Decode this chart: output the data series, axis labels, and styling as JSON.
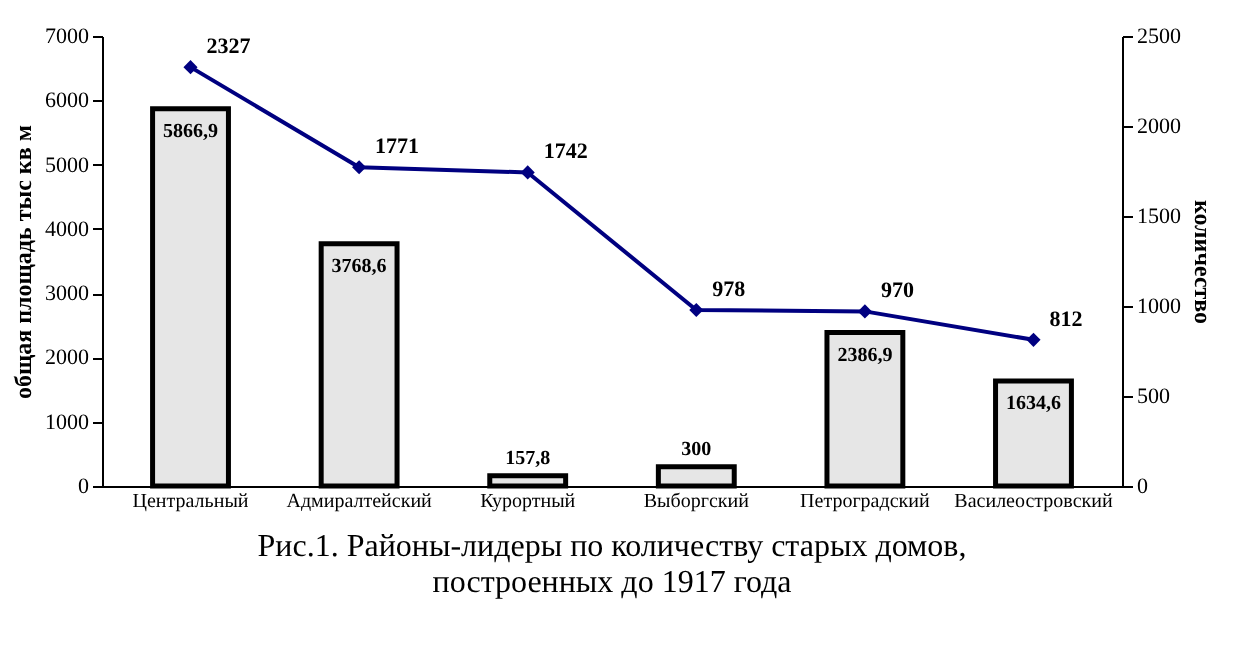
{
  "chart_data": {
    "type": "bar",
    "title": "Рис.1. Районы-лидеры по количеству старых домов,\nпостроенных до 1917 года",
    "ylabel": "общая площадь тыс кв м",
    "y2label": "количество",
    "categories": [
      "Центральный",
      "Адмиралтейский",
      "Курортный",
      "Выборгский",
      "Петроградский",
      "Василеостровский"
    ],
    "series": [
      {
        "type": "bar",
        "color": "#e6e6e6",
        "values": [
          5866.9,
          3768.6,
          157.8,
          300,
          2386.9,
          1634.6
        ],
        "value_labels": [
          "5866,9",
          "3768,6",
          "157,8",
          "300",
          "2386,9",
          "1634,6"
        ]
      },
      {
        "type": "line",
        "axis": "y2",
        "color": "#000080",
        "marker": "diamond",
        "values": [
          2327,
          1771,
          1742,
          978,
          970,
          812
        ],
        "value_labels": [
          "2327",
          "1771",
          "1742",
          "978",
          "970",
          "812"
        ]
      }
    ],
    "ylim": [
      0,
      7000
    ],
    "yticks": [
      0,
      1000,
      2000,
      3000,
      4000,
      5000,
      6000,
      7000
    ],
    "y2lim": [
      0,
      2500
    ],
    "y2ticks": [
      0,
      500,
      1000,
      1500,
      2000,
      2500
    ],
    "grid": false
  }
}
